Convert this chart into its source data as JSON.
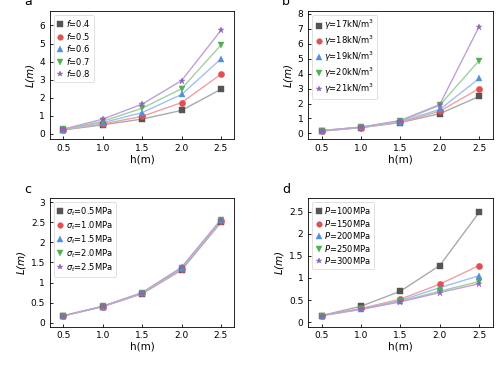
{
  "h": [
    0.5,
    1.0,
    1.5,
    2.0,
    2.5
  ],
  "panel_a": {
    "title": "a",
    "xlabel": "h(m)",
    "ylabel": "L(m)",
    "ylim": [
      -0.3,
      6.8
    ],
    "yticks": [
      0,
      1,
      2,
      3,
      4,
      5,
      6
    ],
    "series": [
      {
        "color": "#555555",
        "marker": "s",
        "values": [
          0.22,
          0.5,
          0.82,
          1.3,
          2.47
        ]
      },
      {
        "color": "#e05050",
        "marker": "o",
        "values": [
          0.23,
          0.55,
          0.97,
          1.73,
          3.3
        ]
      },
      {
        "color": "#5090e0",
        "marker": "^",
        "values": [
          0.24,
          0.62,
          1.18,
          2.18,
          4.15
        ]
      },
      {
        "color": "#50b050",
        "marker": "v",
        "values": [
          0.25,
          0.7,
          1.42,
          2.5,
          4.92
        ]
      },
      {
        "color": "#9060c0",
        "marker": "*",
        "values": [
          0.26,
          0.82,
          1.65,
          2.95,
          5.73
        ]
      }
    ]
  },
  "panel_b": {
    "title": "b",
    "xlabel": "h(m)",
    "ylabel": "L(m)",
    "ylim": [
      -0.4,
      8.2
    ],
    "yticks": [
      0,
      1,
      2,
      3,
      4,
      5,
      6,
      7,
      8
    ],
    "series": [
      {
        "color": "#555555",
        "marker": "s",
        "values": [
          0.15,
          0.38,
          0.72,
          1.32,
          2.47
        ]
      },
      {
        "color": "#e05050",
        "marker": "o",
        "values": [
          0.16,
          0.39,
          0.75,
          1.48,
          3.0
        ]
      },
      {
        "color": "#5090e0",
        "marker": "^",
        "values": [
          0.17,
          0.4,
          0.79,
          1.6,
          3.68
        ]
      },
      {
        "color": "#50b050",
        "marker": "v",
        "values": [
          0.18,
          0.41,
          0.82,
          1.88,
          4.88
        ]
      },
      {
        "color": "#9060c0",
        "marker": "*",
        "values": [
          0.19,
          0.42,
          0.86,
          1.93,
          7.15
        ]
      }
    ]
  },
  "panel_c": {
    "title": "c",
    "xlabel": "h(m)",
    "ylabel": "L(m)",
    "ylim": [
      -0.1,
      3.1
    ],
    "yticks": [
      0.0,
      0.5,
      1.0,
      1.5,
      2.0,
      2.5,
      3.0
    ],
    "series": [
      {
        "color": "#555555",
        "marker": "s",
        "values": [
          0.17,
          0.4,
          0.72,
          1.31,
          2.5
        ]
      },
      {
        "color": "#e05050",
        "marker": "o",
        "values": [
          0.17,
          0.4,
          0.73,
          1.33,
          2.53
        ]
      },
      {
        "color": "#5090e0",
        "marker": "^",
        "values": [
          0.17,
          0.4,
          0.74,
          1.35,
          2.55
        ]
      },
      {
        "color": "#50b050",
        "marker": "v",
        "values": [
          0.17,
          0.41,
          0.74,
          1.37,
          2.56
        ]
      },
      {
        "color": "#9060c0",
        "marker": "*",
        "values": [
          0.17,
          0.41,
          0.75,
          1.38,
          2.57
        ]
      }
    ]
  },
  "panel_d": {
    "title": "d",
    "xlabel": "h(m)",
    "ylabel": "L(m)",
    "ylim": [
      -0.1,
      2.8
    ],
    "yticks": [
      0.0,
      0.5,
      1.0,
      1.5,
      2.0,
      2.5
    ],
    "series": [
      {
        "color": "#555555",
        "marker": "s",
        "values": [
          0.15,
          0.36,
          0.7,
          1.28,
          2.48
        ]
      },
      {
        "color": "#e05050",
        "marker": "o",
        "values": [
          0.15,
          0.31,
          0.52,
          0.86,
          1.28
        ]
      },
      {
        "color": "#5090e0",
        "marker": "^",
        "values": [
          0.15,
          0.3,
          0.49,
          0.78,
          1.05
        ]
      },
      {
        "color": "#50b050",
        "marker": "v",
        "values": [
          0.15,
          0.29,
          0.47,
          0.7,
          0.92
        ]
      },
      {
        "color": "#9060c0",
        "marker": "*",
        "values": [
          0.15,
          0.29,
          0.46,
          0.67,
          0.87
        ]
      }
    ]
  },
  "line_alpha": 0.45,
  "marker_size": 4.5,
  "font_size_label": 7.5,
  "font_size_legend": 6.0,
  "font_size_tick": 6.5,
  "font_size_panel": 9
}
